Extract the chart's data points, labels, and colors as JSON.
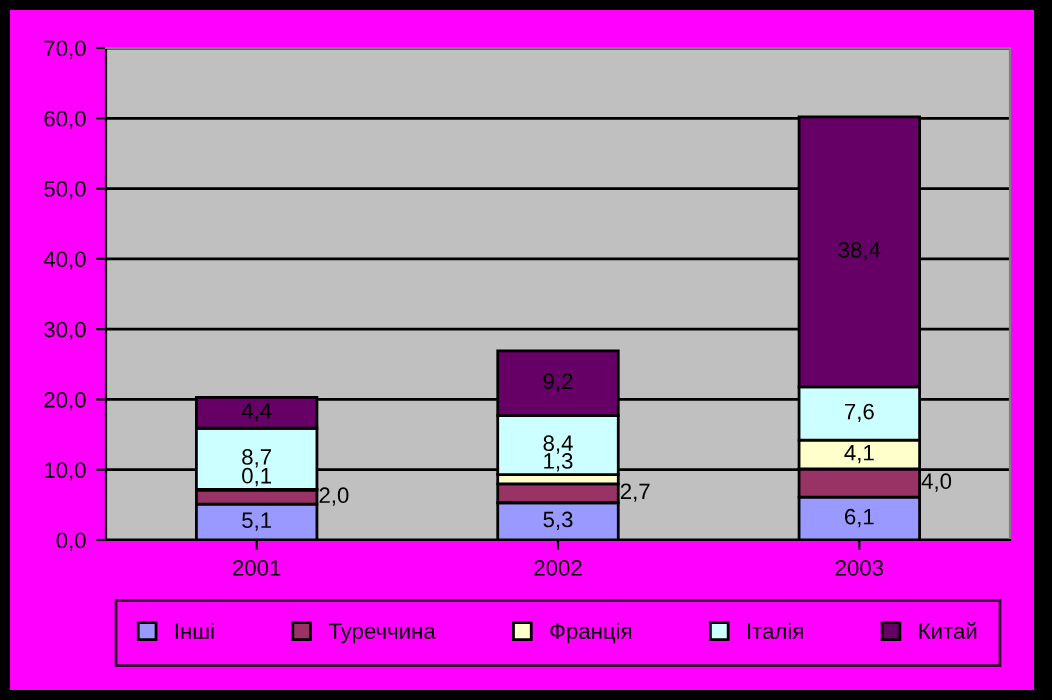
{
  "chart_data": {
    "type": "bar",
    "stacked": true,
    "categories": [
      "2001",
      "2002",
      "2003"
    ],
    "series": [
      {
        "name": "Інші",
        "color": "#9999ff",
        "values": [
          5.1,
          5.3,
          6.1
        ],
        "value_labels": [
          "5,1",
          "5,3",
          "6,1"
        ]
      },
      {
        "name": "Туреччина",
        "color": "#993366",
        "values": [
          2.0,
          2.7,
          4.0
        ],
        "value_labels": [
          "2,0",
          "2,7",
          "4,0"
        ]
      },
      {
        "name": "Франція",
        "color": "#ffffcc",
        "values": [
          0.1,
          1.3,
          4.1
        ],
        "value_labels": [
          "0,1",
          "1,3",
          "4,1"
        ]
      },
      {
        "name": "Італія",
        "color": "#ccffff",
        "values": [
          8.7,
          8.4,
          7.6
        ],
        "value_labels": [
          "8,7",
          "8,4",
          "7,6"
        ]
      },
      {
        "name": "Китай",
        "color": "#660066",
        "values": [
          4.4,
          9.2,
          38.4
        ],
        "value_labels": [
          "4,4",
          "9,2",
          "38,4"
        ]
      }
    ],
    "ylim": [
      0,
      70
    ],
    "yticks": [
      {
        "value": 0,
        "label": "0,0"
      },
      {
        "value": 10,
        "label": "10,0"
      },
      {
        "value": 20,
        "label": "20,0"
      },
      {
        "value": 30,
        "label": "30,0"
      },
      {
        "value": 40,
        "label": "40,0"
      },
      {
        "value": 50,
        "label": "50,0"
      },
      {
        "value": 60,
        "label": "60,0"
      },
      {
        "value": 70,
        "label": "70,0"
      }
    ],
    "grid": "y",
    "legend": "bottom"
  }
}
